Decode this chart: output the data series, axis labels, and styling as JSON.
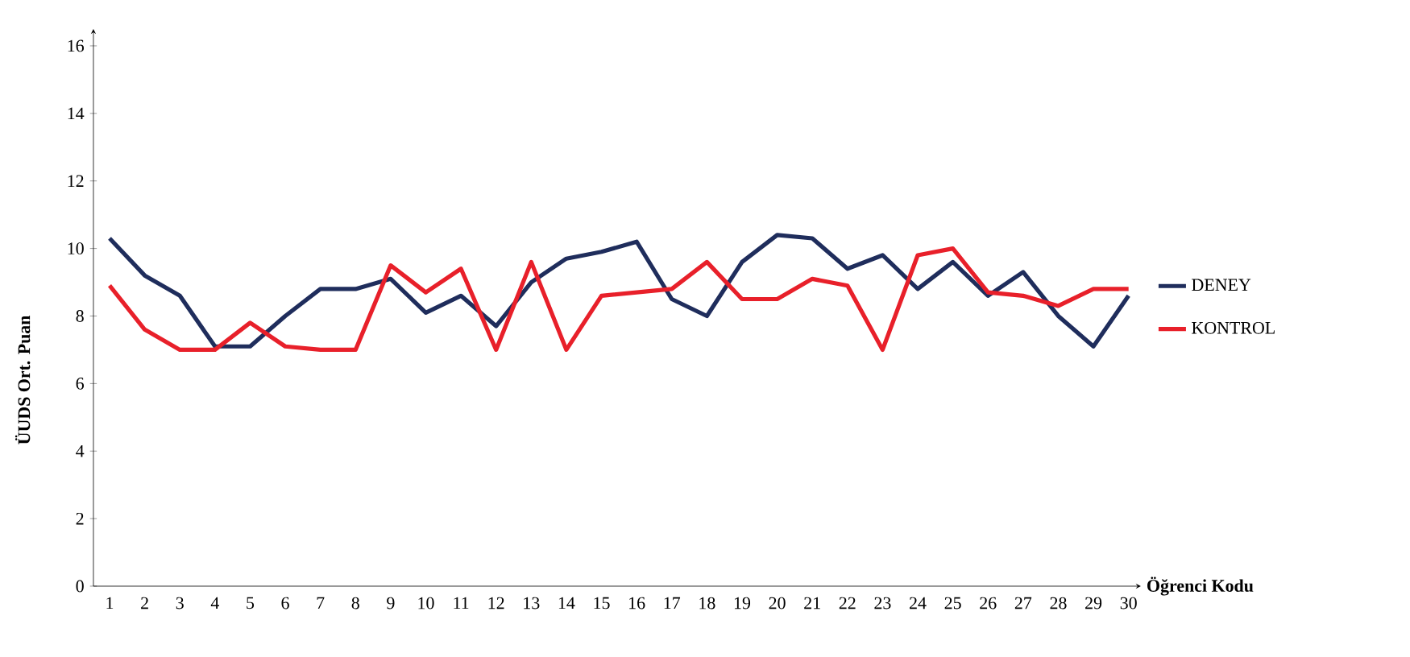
{
  "chart_data": {
    "type": "line",
    "xlabel": "Öğrenci Kodu",
    "ylabel": "ÜUDS Ort. Puan",
    "categories": [
      "1",
      "2",
      "3",
      "4",
      "5",
      "6",
      "7",
      "8",
      "9",
      "10",
      "11",
      "12",
      "13",
      "14",
      "15",
      "16",
      "17",
      "18",
      "19",
      "20",
      "21",
      "22",
      "23",
      "24",
      "25",
      "26",
      "27",
      "28",
      "29",
      "30"
    ],
    "series": [
      {
        "name": "DENEY",
        "color": "#1f2d5c",
        "values": [
          10.3,
          9.2,
          8.6,
          7.1,
          7.1,
          8.0,
          8.8,
          8.8,
          9.1,
          8.1,
          8.6,
          7.7,
          9.0,
          9.7,
          9.9,
          10.2,
          8.5,
          8.0,
          9.6,
          10.4,
          10.3,
          9.4,
          9.8,
          8.8,
          9.6,
          8.6,
          9.3,
          8.0,
          7.1,
          8.6
        ]
      },
      {
        "name": "KONTROL",
        "color": "#e8202a",
        "values": [
          8.9,
          7.6,
          7.0,
          7.0,
          7.8,
          7.1,
          7.0,
          7.0,
          9.5,
          8.7,
          9.4,
          7.0,
          9.6,
          7.0,
          8.6,
          8.7,
          8.8,
          9.6,
          8.5,
          8.5,
          9.1,
          8.9,
          7.0,
          9.8,
          10.0,
          8.7,
          8.6,
          8.3,
          8.8,
          8.8
        ]
      }
    ],
    "ylim": [
      0,
      16.5
    ],
    "yticks": [
      0,
      2,
      4,
      6,
      8,
      10,
      12,
      14,
      16
    ],
    "grid": false,
    "legend": "right",
    "marker": "none",
    "line_style": "solid"
  }
}
